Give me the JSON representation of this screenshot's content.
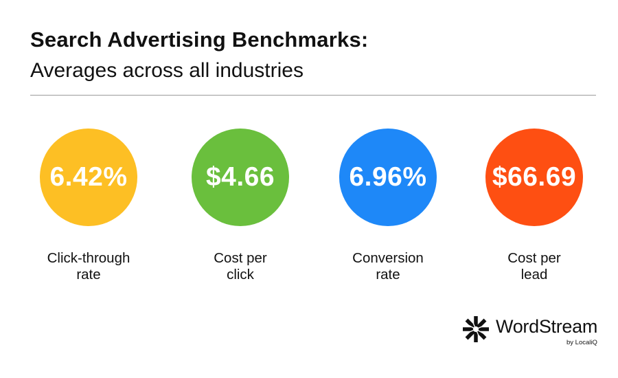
{
  "title": "Search Advertising Benchmarks:",
  "subtitle": "Averages across all industries",
  "colors": {
    "ctr": "#fdbf24",
    "cpc": "#6abf3d",
    "conversion": "#1e88f8",
    "cpl": "#fe4f12"
  },
  "chart_data": {
    "type": "table",
    "title": "Search Advertising Benchmarks:",
    "subtitle": "Averages across all industries",
    "metrics": [
      {
        "value": "6.42%",
        "label_lines": [
          "Click-through",
          "rate"
        ],
        "color": "#fdbf24"
      },
      {
        "value": "$4.66",
        "label_lines": [
          "Cost per",
          "click"
        ],
        "color": "#6abf3d"
      },
      {
        "value": "6.96%",
        "label_lines": [
          "Conversion",
          "rate"
        ],
        "color": "#1e88f8"
      },
      {
        "value": "$66.69",
        "label_lines": [
          "Cost per",
          "lead"
        ],
        "color": "#fe4f12"
      }
    ]
  },
  "brand": {
    "icon": "wordstream-star-icon",
    "name": "WordStream",
    "tagline": "by LocaliQ"
  }
}
